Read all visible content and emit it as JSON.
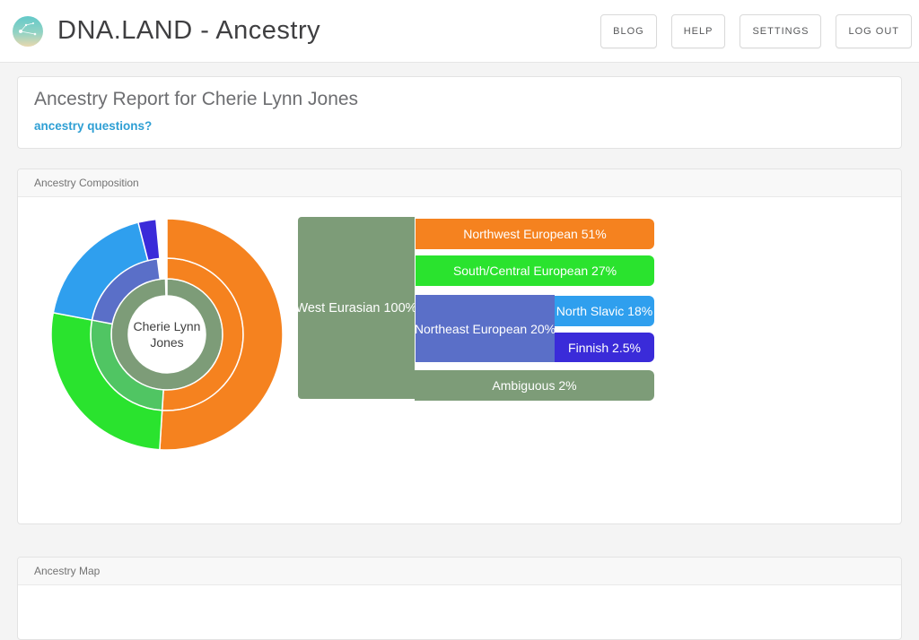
{
  "header": {
    "title": "DNA.LAND - Ancestry",
    "nav": [
      {
        "label": "BLOG"
      },
      {
        "label": "HELP"
      },
      {
        "label": "SETTINGS"
      },
      {
        "label": "LOG OUT"
      }
    ]
  },
  "report": {
    "title": "Ancestry Report for Cherie Lynn Jones",
    "link": "ancestry questions?"
  },
  "panels": {
    "composition": {
      "title": "Ancestry Composition"
    },
    "map": {
      "title": "Ancestry Map"
    }
  },
  "chart_data": {
    "type": "sunburst",
    "title": "Ancestry Composition",
    "person": "Cherie Lynn Jones",
    "center_label": [
      "Cherie Lynn",
      "Jones"
    ],
    "hierarchy": {
      "name": "West Eurasian",
      "value": 100,
      "children": [
        {
          "name": "Northwest European",
          "value": 51
        },
        {
          "name": "South/Central European",
          "value": 27
        },
        {
          "name": "Northeast European",
          "value": 20,
          "children": [
            {
              "name": "North Slavic",
              "value": 18
            },
            {
              "name": "Finnish",
              "value": 2.5
            }
          ]
        },
        {
          "name": "Ambiguous",
          "value": 2
        }
      ]
    },
    "rings": [
      {
        "segments": [
          {
            "label": "West Eurasian",
            "value": 99.6,
            "color": "#7d9c78"
          }
        ]
      },
      {
        "segments": [
          {
            "label": "Northwest European",
            "value": 51,
            "color": "#f5821f"
          },
          {
            "label": "South/Central European",
            "value": 27,
            "color": "#50c563"
          },
          {
            "label": "Northeast European",
            "value": 20,
            "color": "#5a6fc8"
          }
        ]
      },
      {
        "segments": [
          {
            "label": "Northwest European",
            "value": 51,
            "color": "#f5821f"
          },
          {
            "label": "South/Central European",
            "value": 27,
            "color": "#2ae32e"
          },
          {
            "label": "North Slavic",
            "value": 18,
            "color": "#2f9fee"
          },
          {
            "label": "Finnish",
            "value": 2.5,
            "color": "#3a2bd9"
          }
        ]
      }
    ],
    "icicle": {
      "west_eurasian": {
        "label": "West Eurasian 100%",
        "color": "#7d9c78"
      },
      "northwest_european": {
        "label": "Northwest European 51%",
        "color": "#f5821f"
      },
      "south_central_european": {
        "label": "South/Central European 27%",
        "color": "#2ae32e"
      },
      "northeast_european": {
        "label": "Northeast European 20%",
        "color": "#5a6fc8"
      },
      "north_slavic": {
        "label": "North Slavic 18%",
        "color": "#2f9fee"
      },
      "finnish": {
        "label": "Finnish 2.5%",
        "color": "#3a2bd9"
      },
      "ambiguous": {
        "label": "Ambiguous 2%",
        "color": "#7d9c78"
      }
    }
  }
}
